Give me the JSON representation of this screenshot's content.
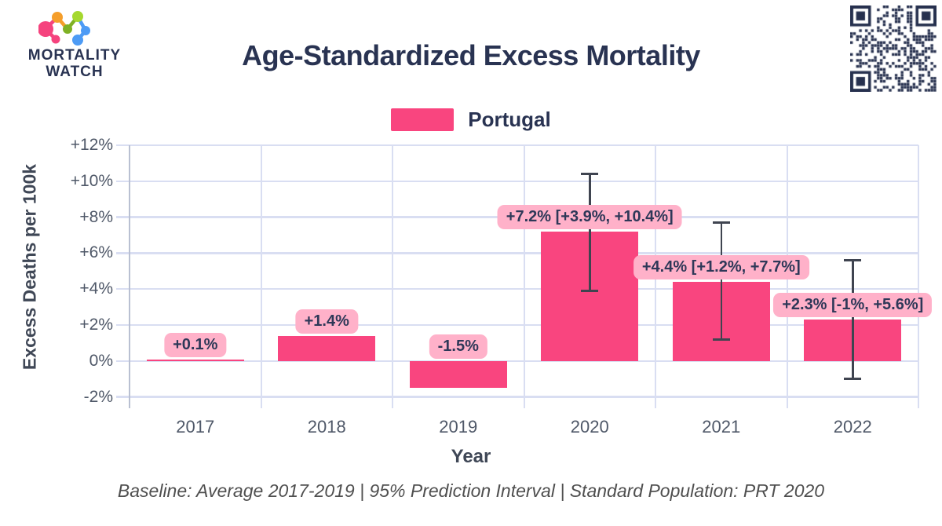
{
  "header": {
    "logo_line1": "MORTALITY",
    "logo_line2": "WATCH",
    "title": "Age-Standardized Excess Mortality"
  },
  "footer": {
    "text": "Baseline: Average 2017-2019 | 95% Prediction Interval | Standard Population: PRT 2020"
  },
  "icons": {
    "logo": "mortality-watch-molecule-logo",
    "qr": "qr-code"
  },
  "colors": {
    "navy": "#293352",
    "bar_pink": "#F9457F",
    "label_pill_bg": "#FFB1C9",
    "label_pill_text": "#2E3858",
    "gridline": "#D9DEF2",
    "axis_line": "#B9C0D2",
    "tick_text": "#4F5868",
    "error_bar": "#3F4450",
    "footer_text": "#4F4F4F"
  },
  "chart_data": {
    "type": "bar",
    "title": "Age-Standardized Excess Mortality",
    "xlabel": "Year",
    "ylabel": "Excess Deaths per 100k",
    "categories": [
      "2017",
      "2018",
      "2019",
      "2020",
      "2021",
      "2022"
    ],
    "series": [
      {
        "name": "Portugal",
        "values": [
          0.1,
          1.4,
          -1.5,
          7.2,
          4.4,
          2.3
        ],
        "ci_low": [
          null,
          null,
          null,
          3.9,
          1.2,
          -1.0
        ],
        "ci_high": [
          null,
          null,
          null,
          10.4,
          7.7,
          5.6
        ],
        "data_labels": [
          "+0.1%",
          "+1.4%",
          "-1.5%",
          "+7.2% [+3.9%, +10.4%]",
          "+4.4% [+1.2%, +7.7%]",
          "+2.3% [-1%, +5.6%]"
        ]
      }
    ],
    "ylim": [
      -2.6,
      12
    ],
    "yticks": {
      "values": [
        12,
        10,
        8,
        6,
        4,
        2,
        0,
        -2
      ],
      "labels": [
        "+12%",
        "+10%",
        "+8%",
        "+6%",
        "+4%",
        "+2%",
        "0%",
        "-2%"
      ]
    },
    "grid": true,
    "legend_position": "top",
    "units": "percent"
  }
}
